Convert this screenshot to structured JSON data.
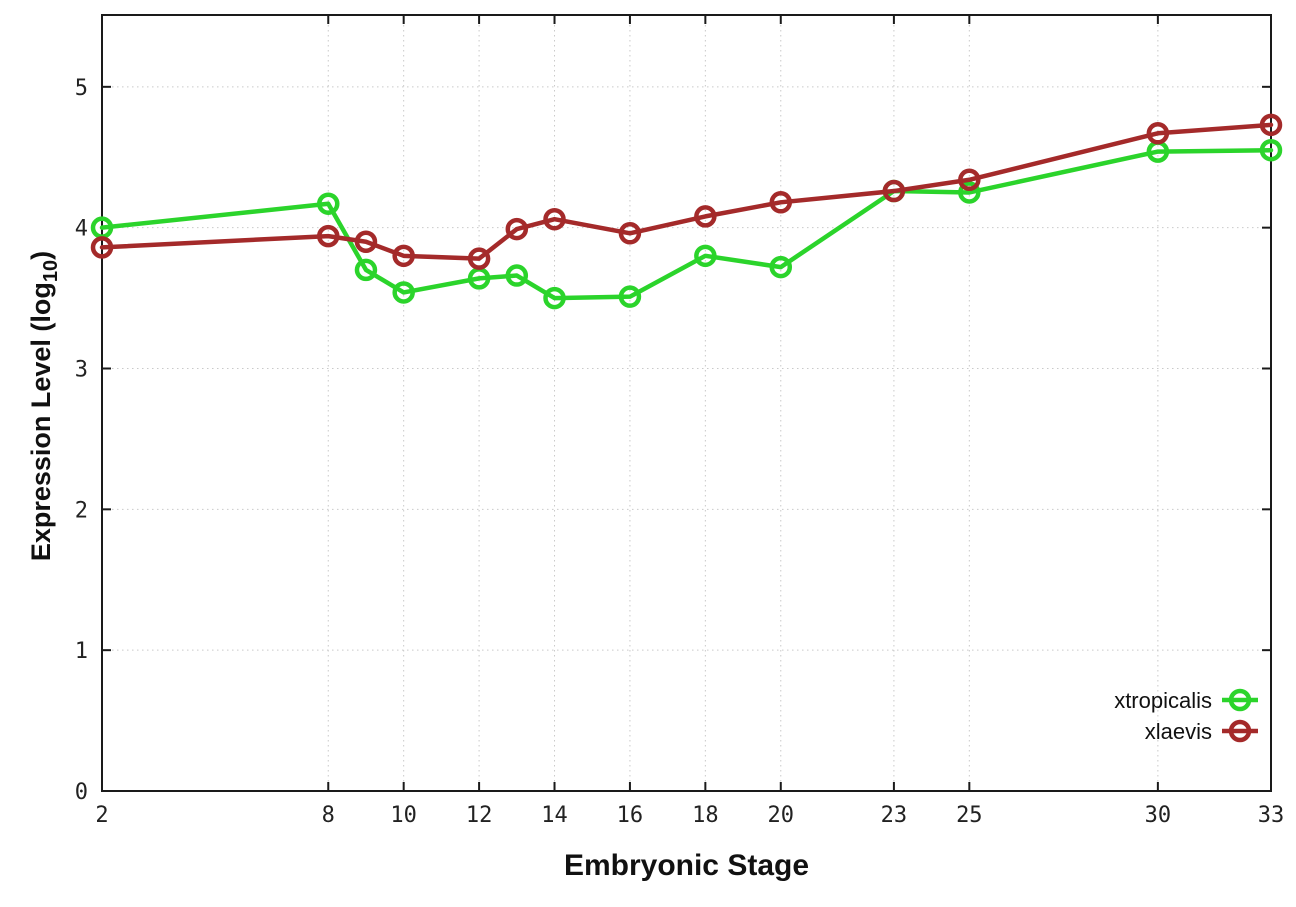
{
  "figure": {
    "background": "#FFFFFF",
    "axis_color": "#1A1A1A",
    "grid_color": "#C9C9C9",
    "tick_label_color": "#222222",
    "legend_text_color": "#111111"
  },
  "chart_data": {
    "type": "line",
    "title": "",
    "xlabel": "Embryonic Stage",
    "ylabel": "Expression Level (log10)",
    "ylabel_rich": {
      "main": "Expression Level (log",
      "sub": "10",
      "close": ")"
    },
    "xlim": [
      2,
      33
    ],
    "ylim": [
      0,
      5.51
    ],
    "x_ticks": [
      2,
      8,
      10,
      12,
      14,
      16,
      18,
      20,
      23,
      25,
      30,
      33
    ],
    "y_ticks": [
      0,
      1,
      2,
      3,
      4,
      5
    ],
    "grid": "dotted",
    "legend_position": "inside-bottom-right",
    "x": [
      2,
      8,
      9,
      10,
      12,
      13,
      14,
      16,
      18,
      20,
      23,
      25,
      30,
      33
    ],
    "series": [
      {
        "name": "xtropicalis",
        "color": "#2BD42B",
        "marker": "open-circle",
        "values": [
          4.0,
          4.17,
          3.7,
          3.54,
          3.64,
          3.66,
          3.5,
          3.51,
          3.8,
          3.72,
          4.26,
          4.25,
          4.54,
          4.55
        ]
      },
      {
        "name": "xlaevis",
        "color": "#A42A2A",
        "marker": "open-circle",
        "values": [
          3.86,
          3.94,
          3.9,
          3.8,
          3.78,
          3.99,
          4.06,
          3.96,
          4.08,
          4.18,
          4.26,
          4.34,
          4.67,
          4.73
        ]
      }
    ]
  }
}
